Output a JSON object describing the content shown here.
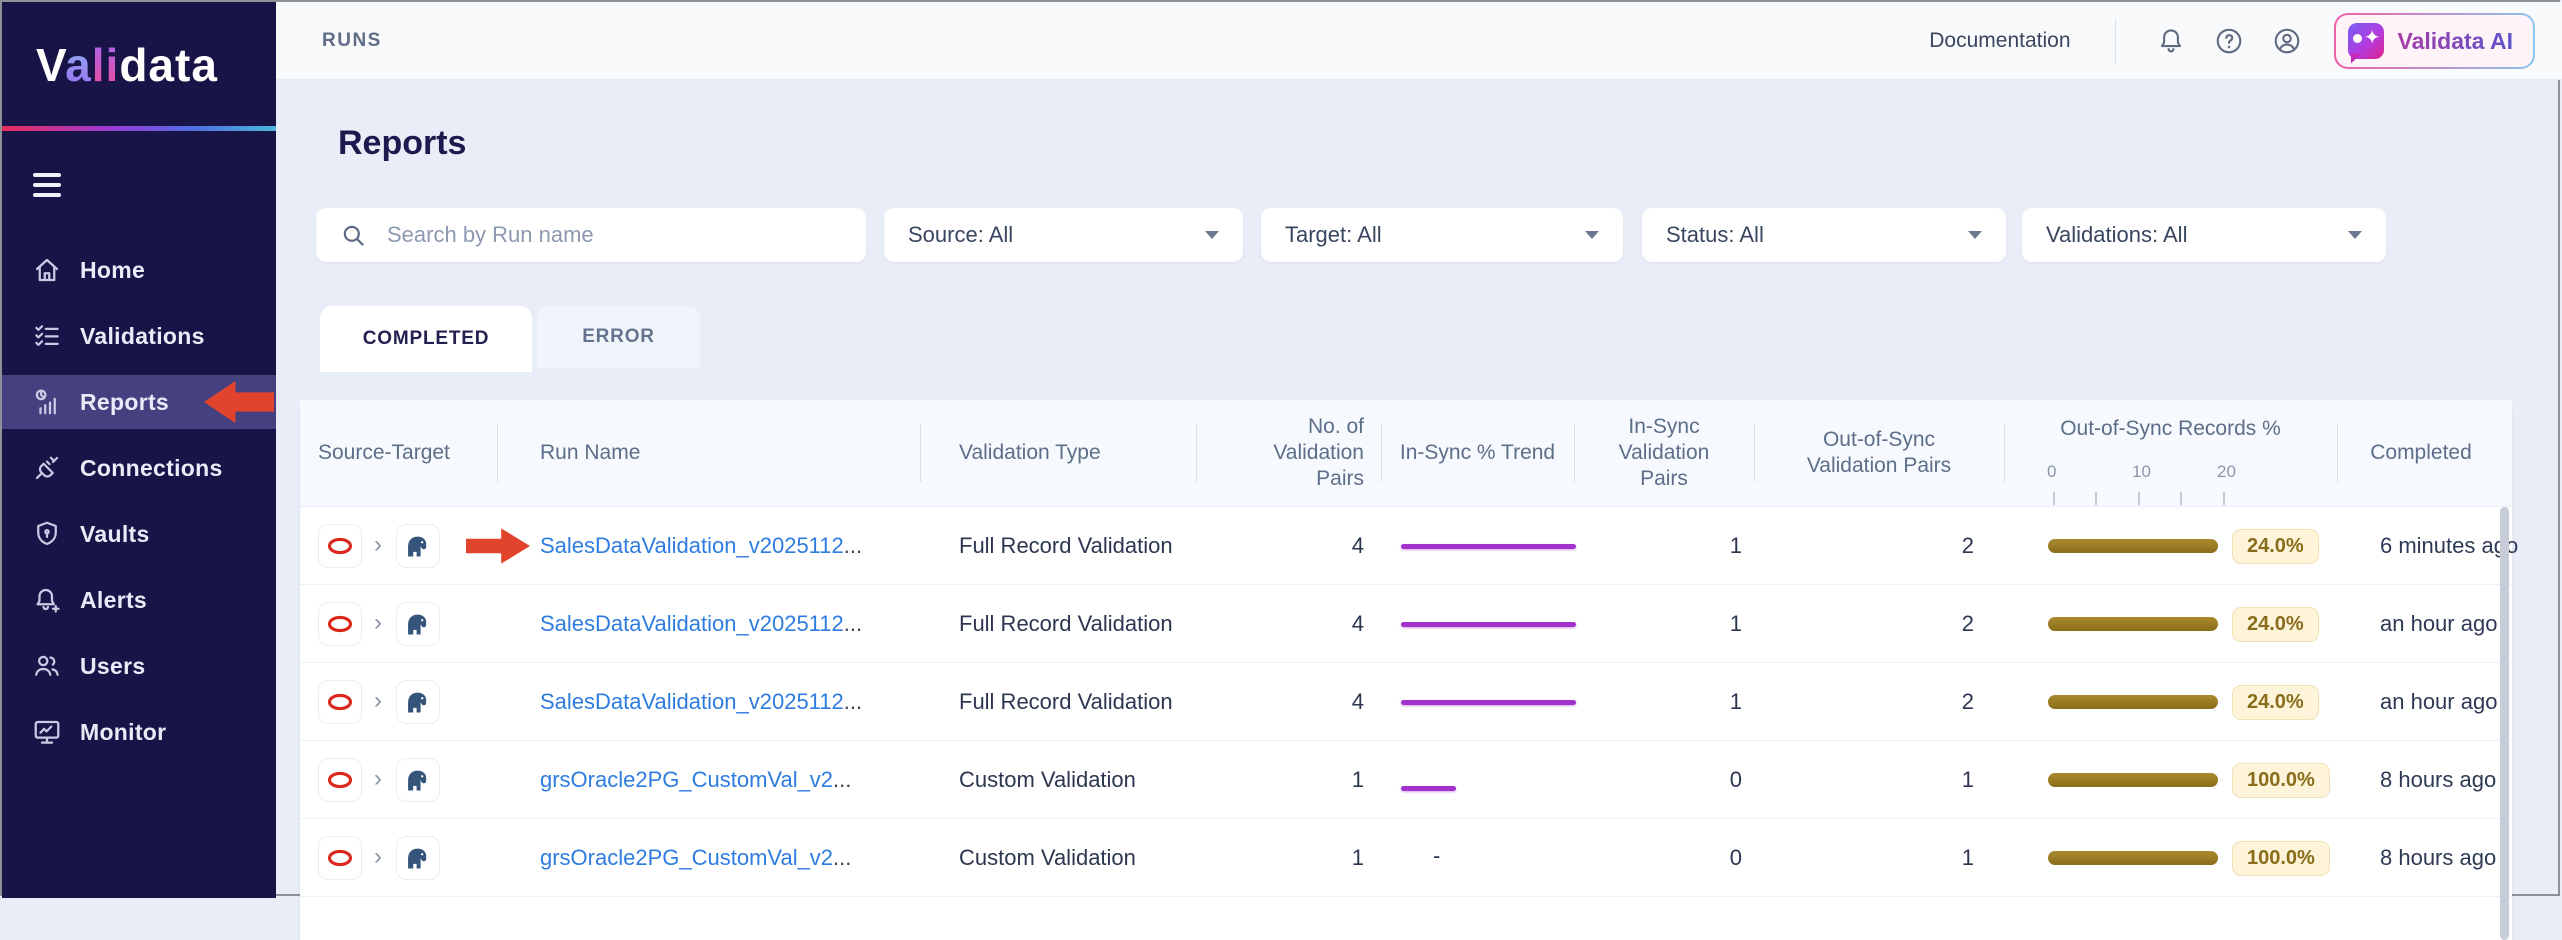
{
  "colors": {
    "sidebar_bg": "#181447",
    "active_nav_bg": "#454180",
    "page_bg": "#e9edf7",
    "link_blue": "#2e7ce0",
    "trend_purple": "#a232cc",
    "bar_gold": "#9c7c22",
    "badge_bg": "#fdf4da",
    "badge_text": "#8a6d1a",
    "arrow_red": "#e2432d",
    "logo_gradient": [
      "#e82c5a",
      "#9a3bd6",
      "#49b7d8"
    ]
  },
  "sidebar": {
    "logo": {
      "p1": "V",
      "p2": "a",
      "p3": "li",
      "p4": "data"
    },
    "items": [
      {
        "label": "Home",
        "icon": "home-icon",
        "active": false
      },
      {
        "label": "Validations",
        "icon": "checklist-icon",
        "active": false
      },
      {
        "label": "Reports",
        "icon": "report-chart-icon",
        "active": true,
        "annotated_arrow": true
      },
      {
        "label": "Connections",
        "icon": "plug-icon",
        "active": false
      },
      {
        "label": "Vaults",
        "icon": "shield-icon",
        "active": false
      },
      {
        "label": "Alerts",
        "icon": "bell-plus-icon",
        "active": false
      },
      {
        "label": "Users",
        "icon": "users-icon",
        "active": false
      },
      {
        "label": "Monitor",
        "icon": "monitor-icon",
        "active": false
      }
    ]
  },
  "topbar": {
    "breadcrumb": "RUNS",
    "documentation_label": "Documentation",
    "ai_button_label": "Validata AI"
  },
  "page": {
    "title": "Reports"
  },
  "filters": {
    "search_placeholder": "Search by Run name",
    "dropdowns": [
      {
        "label": "Source: All"
      },
      {
        "label": "Target: All"
      },
      {
        "label": "Status: All"
      },
      {
        "label": "Validations: All"
      }
    ]
  },
  "tabs": [
    {
      "label": "COMPLETED",
      "active": true
    },
    {
      "label": "ERROR",
      "active": false
    }
  ],
  "table": {
    "columns": [
      "Source-Target",
      "Run Name",
      "Validation Type",
      "No. of\nValidation\nPairs",
      "In-Sync % Trend",
      "In-Sync\nValidation\nPairs",
      "Out-of-Sync\nValidation Pairs",
      "Out-of-Sync Records %",
      "Completed"
    ],
    "records_axis_ticks": [
      "0",
      "10",
      "20"
    ],
    "rows": [
      {
        "source": "oracle",
        "target": "postgresql",
        "run_name": "SalesDataValidation_v2025112",
        "suffix": "...",
        "validation_type": "Full Record Validation",
        "pairs": "4",
        "trend": "line-long",
        "in_sync": "1",
        "out_sync": "2",
        "out_pct": "24.0%",
        "completed": "6 minutes ago",
        "annotated_arrow": true
      },
      {
        "source": "oracle",
        "target": "postgresql",
        "run_name": "SalesDataValidation_v2025112",
        "suffix": "...",
        "validation_type": "Full Record Validation",
        "pairs": "4",
        "trend": "line-long",
        "in_sync": "1",
        "out_sync": "2",
        "out_pct": "24.0%",
        "completed": "an hour ago",
        "annotated_arrow": false
      },
      {
        "source": "oracle",
        "target": "postgresql",
        "run_name": "SalesDataValidation_v2025112",
        "suffix": "...",
        "validation_type": "Full Record Validation",
        "pairs": "4",
        "trend": "line-long",
        "in_sync": "1",
        "out_sync": "2",
        "out_pct": "24.0%",
        "completed": "an hour ago",
        "annotated_arrow": false
      },
      {
        "source": "oracle",
        "target": "postgresql",
        "run_name": "grsOracle2PG_CustomVal_v2",
        "suffix": "...",
        "validation_type": "Custom Validation",
        "pairs": "1",
        "trend": "line-short",
        "in_sync": "0",
        "out_sync": "1",
        "out_pct": "100.0%",
        "completed": "8 hours ago",
        "annotated_arrow": false
      },
      {
        "source": "oracle",
        "target": "postgresql",
        "run_name": "grsOracle2PG_CustomVal_v2",
        "suffix": "...",
        "validation_type": "Custom Validation",
        "pairs": "1",
        "trend": "dash",
        "trend_dash": "-",
        "in_sync": "0",
        "out_sync": "1",
        "out_pct": "100.0%",
        "completed": "8 hours ago",
        "annotated_arrow": false
      }
    ]
  }
}
